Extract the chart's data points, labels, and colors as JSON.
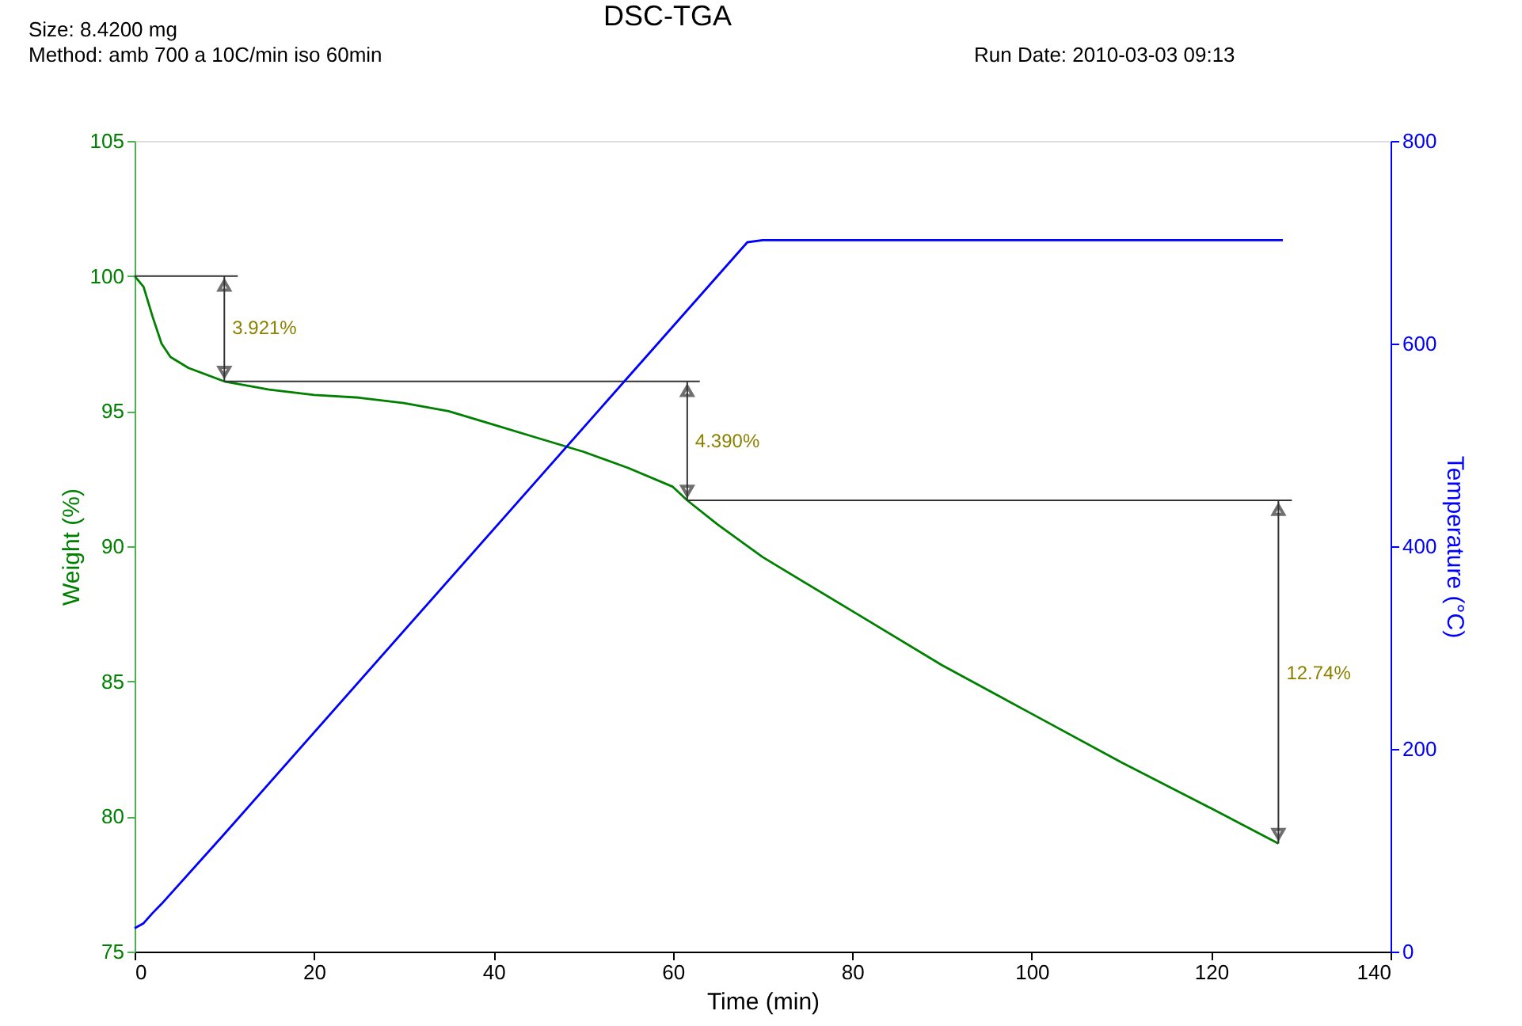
{
  "chart_data": {
    "type": "line",
    "title": "DSC-TGA",
    "xlabel": "Time (min)",
    "ylabel": "Weight (%)",
    "y2label": "Temperature (°C)",
    "xlim": [
      0,
      140
    ],
    "xticks": [
      0,
      20,
      40,
      60,
      80,
      100,
      120,
      140
    ],
    "ylim": [
      75,
      105
    ],
    "yticks": [
      75,
      80,
      85,
      90,
      95,
      100,
      105
    ],
    "y2lim": [
      0,
      800
    ],
    "y2ticks": [
      0,
      200,
      400,
      600,
      800
    ],
    "grid": false,
    "line_style": "solid",
    "marker": "none",
    "series": [
      {
        "color": "#008000",
        "x": [
          0,
          1,
          2,
          3,
          4,
          6,
          10,
          15,
          20,
          25,
          30,
          35,
          40,
          45,
          50,
          55,
          60,
          61.6,
          65,
          70,
          80,
          90,
          100,
          110,
          120,
          127.5
        ],
        "values": [
          100,
          99.6,
          98.5,
          97.5,
          97.0,
          96.6,
          96.1,
          95.8,
          95.6,
          95.5,
          95.3,
          95.0,
          94.5,
          94.0,
          93.5,
          92.9,
          92.2,
          91.7,
          90.8,
          89.6,
          87.6,
          85.6,
          83.8,
          82.0,
          80.3,
          79.0
        ]
      },
      {
        "color": "#0000ff",
        "axis": "y2",
        "x": [
          0,
          1,
          2,
          3,
          10,
          68.3,
          70,
          128
        ],
        "values": [
          23,
          28,
          38,
          47,
          116,
          700,
          702,
          702
        ]
      },
      {
        "color": "#333333",
        "x": [
          0,
          11.5
        ],
        "values": [
          100,
          100
        ]
      },
      {
        "color": "#333333",
        "x": [
          10,
          10
        ],
        "values": [
          100,
          96.1
        ]
      },
      {
        "color": "#333333",
        "x": [
          10,
          63
        ],
        "values": [
          96.1,
          96.1
        ]
      },
      {
        "color": "#333333",
        "x": [
          61.6,
          61.6
        ],
        "values": [
          96.1,
          91.7
        ]
      },
      {
        "color": "#333333",
        "x": [
          61.6,
          129
        ],
        "values": [
          91.7,
          91.7
        ]
      },
      {
        "color": "#333333",
        "x": [
          127.5,
          127.5
        ],
        "values": [
          91.7,
          79.0
        ]
      }
    ],
    "annotations": [
      "Size:  8.4200 mg",
      "Method: amb 700 a 10C/min iso 60min",
      "Run Date: 2010-03-03 09:13",
      {
        "text": "3.921%",
        "x": 10,
        "y": 98.1
      },
      {
        "text": "4.390%",
        "x": 61.6,
        "y": 93.9
      },
      {
        "text": "12.74%",
        "x": 127.5,
        "y": 85.3
      }
    ]
  }
}
